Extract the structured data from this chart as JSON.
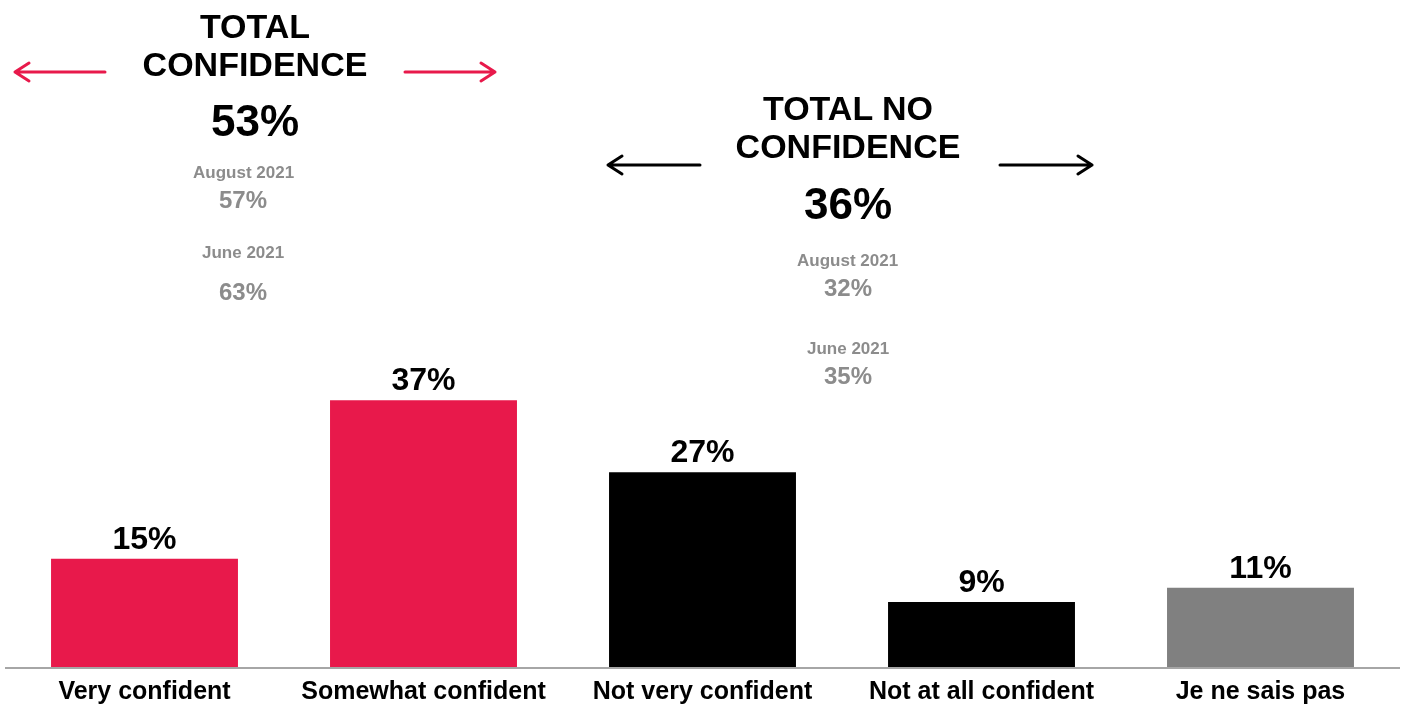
{
  "chart_data": {
    "type": "bar",
    "categories": [
      "Very confident",
      "Somewhat confident",
      "Not very confident",
      "Not at all confident",
      "Je ne sais pas"
    ],
    "values": [
      15,
      37,
      27,
      9,
      11
    ],
    "colors": [
      "#e8194b",
      "#e8194b",
      "#000000",
      "#000000",
      "#808080"
    ],
    "value_labels": [
      "15%",
      "37%",
      "27%",
      "9%",
      "11%"
    ],
    "annotations": [
      "TOTAL CONFIDENCE",
      "53%",
      "August 2021",
      "57%",
      "June 2021",
      "63%",
      "TOTAL NO CONFIDENCE",
      "36%",
      "August 2021",
      "32%",
      "June 2021",
      "35%"
    ]
  }
}
